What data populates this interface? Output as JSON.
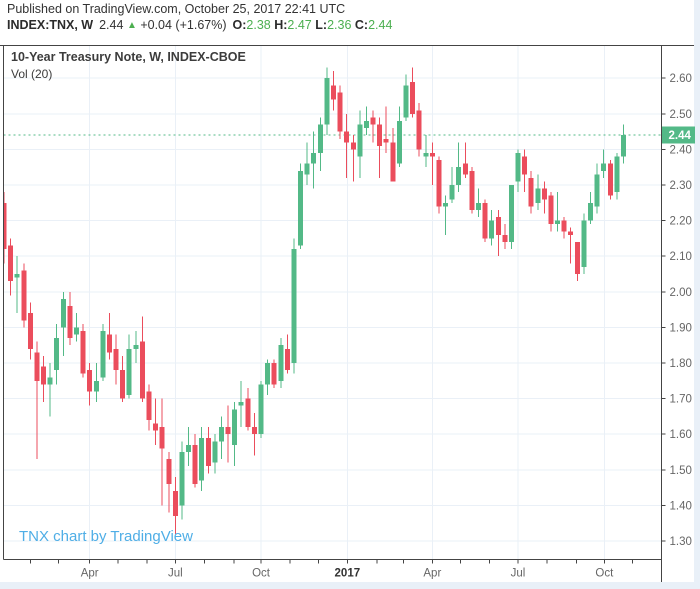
{
  "header": {
    "published_line": "Published on TradingView.com, October 25, 2017 22:41 UTC",
    "symbol": "INDEX:TNX, W",
    "last_price": "2.44",
    "direction_icon": "▲",
    "change": "+0.04 (+1.67%)",
    "ohlc": [
      {
        "label": "O:",
        "value": "2.38"
      },
      {
        "label": "H:",
        "value": "2.47"
      },
      {
        "label": "L:",
        "value": "2.36"
      },
      {
        "label": "C:",
        "value": "2.44"
      }
    ]
  },
  "legend": {
    "title": "10-Year Treasury Note, W, INDEX-CBOE",
    "indicator": "Vol (20)"
  },
  "watermark": "TNX chart by TradingView",
  "colors": {
    "up": "#53B987",
    "down": "#EB4D5C",
    "value_green": "#4CAF50",
    "watermark_blue": "#4FAEE6",
    "grid": "#EAF0F7",
    "axis_border": "#444444",
    "axis_text": "#666666",
    "price_label_bg": "#53B987",
    "price_label_text": "#FFFFFF",
    "dashed_line": "#53B987"
  },
  "chart_data": {
    "type": "candlestick",
    "title": "10-Year Treasury Note, W, INDEX-CBOE",
    "subtitle": "Vol (20)",
    "xlabel": "",
    "ylabel": "",
    "grid": true,
    "legend_position": "top-left",
    "timeframe": "weekly",
    "current_price": 2.44,
    "current_price_label": "2.44",
    "ylim": [
      1.248,
      2.692
    ],
    "y_ticks": [
      1.3,
      1.4,
      1.5,
      1.6,
      1.7,
      1.8,
      1.9,
      2.0,
      2.1,
      2.2,
      2.3,
      2.4,
      2.5,
      2.6
    ],
    "x_labels": [
      {
        "label": "Apr",
        "week": 13.0,
        "bold": false
      },
      {
        "label": "Jul",
        "week": 26.0,
        "bold": false
      },
      {
        "label": "Oct",
        "week": 39.0,
        "bold": false
      },
      {
        "label": "2017",
        "week": 52.1,
        "bold": true
      },
      {
        "label": "Apr",
        "week": 65.0,
        "bold": false
      },
      {
        "label": "Jul",
        "week": 78.0,
        "bold": false
      },
      {
        "label": "Oct",
        "week": 91.1,
        "bold": false
      }
    ],
    "month_tick_weeks": [
      4.0,
      8.3,
      13.0,
      17.3,
      21.7,
      26.0,
      30.4,
      34.9,
      39.0,
      43.4,
      47.7,
      52.1,
      56.6,
      60.6,
      65.0,
      69.3,
      73.7,
      78.0,
      82.4,
      86.9,
      91.1,
      95.4
    ],
    "candles_format": [
      "open",
      "high",
      "low",
      "close"
    ],
    "candles": [
      [
        2.25,
        2.28,
        2.08,
        2.12
      ],
      [
        2.13,
        2.15,
        1.99,
        2.03
      ],
      [
        2.04,
        2.1,
        1.94,
        2.05
      ],
      [
        2.06,
        2.08,
        1.9,
        1.92
      ],
      [
        1.94,
        1.97,
        1.81,
        1.84
      ],
      [
        1.83,
        1.86,
        1.53,
        1.75
      ],
      [
        1.79,
        1.82,
        1.69,
        1.74
      ],
      [
        1.74,
        1.8,
        1.65,
        1.76
      ],
      [
        1.78,
        1.91,
        1.74,
        1.87
      ],
      [
        1.9,
        2.0,
        1.82,
        1.98
      ],
      [
        1.96,
        2.0,
        1.85,
        1.87
      ],
      [
        1.88,
        1.94,
        1.86,
        1.9
      ],
      [
        1.89,
        1.91,
        1.76,
        1.77
      ],
      [
        1.78,
        1.8,
        1.68,
        1.72
      ],
      [
        1.72,
        1.8,
        1.69,
        1.75
      ],
      [
        1.76,
        1.91,
        1.75,
        1.89
      ],
      [
        1.88,
        1.94,
        1.81,
        1.83
      ],
      [
        1.84,
        1.88,
        1.74,
        1.78
      ],
      [
        1.78,
        1.82,
        1.69,
        1.7
      ],
      [
        1.71,
        1.88,
        1.7,
        1.84
      ],
      [
        1.84,
        1.89,
        1.8,
        1.85
      ],
      [
        1.86,
        1.93,
        1.69,
        1.7
      ],
      [
        1.72,
        1.74,
        1.61,
        1.64
      ],
      [
        1.63,
        1.7,
        1.57,
        1.61
      ],
      [
        1.62,
        1.7,
        1.4,
        1.56
      ],
      [
        1.53,
        1.55,
        1.38,
        1.46
      ],
      [
        1.44,
        1.48,
        1.32,
        1.37
      ],
      [
        1.4,
        1.58,
        1.36,
        1.55
      ],
      [
        1.55,
        1.62,
        1.51,
        1.57
      ],
      [
        1.57,
        1.6,
        1.45,
        1.46
      ],
      [
        1.47,
        1.62,
        1.44,
        1.59
      ],
      [
        1.59,
        1.62,
        1.49,
        1.51
      ],
      [
        1.52,
        1.6,
        1.49,
        1.58
      ],
      [
        1.58,
        1.65,
        1.53,
        1.62
      ],
      [
        1.62,
        1.68,
        1.52,
        1.6
      ],
      [
        1.57,
        1.69,
        1.51,
        1.67
      ],
      [
        1.68,
        1.75,
        1.62,
        1.69
      ],
      [
        1.7,
        1.73,
        1.61,
        1.62
      ],
      [
        1.62,
        1.66,
        1.54,
        1.6
      ],
      [
        1.6,
        1.75,
        1.59,
        1.74
      ],
      [
        1.74,
        1.81,
        1.71,
        1.8
      ],
      [
        1.8,
        1.81,
        1.73,
        1.74
      ],
      [
        1.75,
        1.87,
        1.73,
        1.85
      ],
      [
        1.84,
        1.88,
        1.77,
        1.78
      ],
      [
        1.8,
        2.15,
        1.77,
        2.12
      ],
      [
        2.13,
        2.36,
        2.12,
        2.34
      ],
      [
        2.33,
        2.42,
        2.3,
        2.36
      ],
      [
        2.36,
        2.45,
        2.29,
        2.39
      ],
      [
        2.39,
        2.49,
        2.34,
        2.47
      ],
      [
        2.47,
        2.63,
        2.44,
        2.6
      ],
      [
        2.58,
        2.62,
        2.51,
        2.54
      ],
      [
        2.56,
        2.58,
        2.43,
        2.45
      ],
      [
        2.45,
        2.5,
        2.32,
        2.42
      ],
      [
        2.42,
        2.44,
        2.31,
        2.4
      ],
      [
        2.38,
        2.51,
        2.32,
        2.47
      ],
      [
        2.46,
        2.52,
        2.44,
        2.48
      ],
      [
        2.49,
        2.51,
        2.42,
        2.47
      ],
      [
        2.47,
        2.49,
        2.32,
        2.41
      ],
      [
        2.43,
        2.52,
        2.39,
        2.42
      ],
      [
        2.42,
        2.46,
        2.31,
        2.31
      ],
      [
        2.36,
        2.52,
        2.35,
        2.48
      ],
      [
        2.49,
        2.61,
        2.48,
        2.58
      ],
      [
        2.59,
        2.63,
        2.49,
        2.5
      ],
      [
        2.51,
        2.53,
        2.38,
        2.4
      ],
      [
        2.38,
        2.44,
        2.35,
        2.39
      ],
      [
        2.39,
        2.42,
        2.3,
        2.38
      ],
      [
        2.37,
        2.38,
        2.22,
        2.24
      ],
      [
        2.24,
        2.27,
        2.16,
        2.25
      ],
      [
        2.26,
        2.35,
        2.25,
        2.3
      ],
      [
        2.3,
        2.42,
        2.28,
        2.35
      ],
      [
        2.36,
        2.42,
        2.32,
        2.33
      ],
      [
        2.34,
        2.35,
        2.22,
        2.23
      ],
      [
        2.23,
        2.29,
        2.21,
        2.25
      ],
      [
        2.25,
        2.26,
        2.14,
        2.15
      ],
      [
        2.15,
        2.23,
        2.13,
        2.2
      ],
      [
        2.21,
        2.23,
        2.1,
        2.16
      ],
      [
        2.16,
        2.19,
        2.12,
        2.14
      ],
      [
        2.14,
        2.3,
        2.12,
        2.3
      ],
      [
        2.31,
        2.4,
        2.28,
        2.39
      ],
      [
        2.38,
        2.4,
        2.28,
        2.33
      ],
      [
        2.32,
        2.34,
        2.22,
        2.24
      ],
      [
        2.25,
        2.33,
        2.23,
        2.29
      ],
      [
        2.29,
        2.31,
        2.22,
        2.26
      ],
      [
        2.27,
        2.28,
        2.17,
        2.19
      ],
      [
        2.19,
        2.28,
        2.17,
        2.2
      ],
      [
        2.2,
        2.21,
        2.15,
        2.17
      ],
      [
        2.17,
        2.18,
        2.08,
        2.16
      ],
      [
        2.14,
        2.14,
        2.03,
        2.05
      ],
      [
        2.07,
        2.22,
        2.05,
        2.2
      ],
      [
        2.2,
        2.28,
        2.19,
        2.25
      ],
      [
        2.24,
        2.36,
        2.22,
        2.33
      ],
      [
        2.34,
        2.4,
        2.32,
        2.36
      ],
      [
        2.36,
        2.37,
        2.26,
        2.27
      ],
      [
        2.28,
        2.39,
        2.26,
        2.38
      ],
      [
        2.38,
        2.47,
        2.36,
        2.44
      ]
    ]
  }
}
